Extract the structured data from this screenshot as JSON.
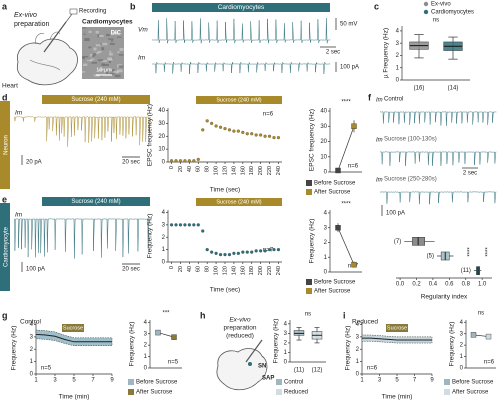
{
  "panel_labels": [
    "a",
    "b",
    "c",
    "d",
    "e",
    "f",
    "g",
    "h",
    "i"
  ],
  "a": {
    "title_lines": [
      "Ex-vivo",
      "preparation"
    ],
    "recording": "Recording",
    "heart": "Heart",
    "image_title": "Cardiomyocytes",
    "dic": "DIC",
    "scale": "10 µm"
  },
  "b": {
    "header": "Cardiomyocytes",
    "vm": "Vm",
    "im": "Im",
    "scale_v": "50 mV",
    "scale_t": "2 sec",
    "scale_i": "100 pA"
  },
  "d": {
    "side_label": "Neuron",
    "header": "Sucrose (240 mM)",
    "im": "Im",
    "scale_i": "20 pA",
    "scale_t": "20 sec"
  },
  "e": {
    "side_label": "Cardiomyocyte",
    "header": "Sucrose (240 mM)",
    "im": "Im",
    "scale_i": "100 pA",
    "scale_t": "20 sec"
  },
  "f": {
    "im_labels": [
      "Im",
      "Im",
      "Im"
    ],
    "trace_titles": [
      "Control",
      "Sucrose (100-130s)",
      "Sucrose (250-280s)"
    ],
    "scale_t": "2 sec",
    "scale_i": "100 pA"
  },
  "h": {
    "title_lines": [
      "Ex-vivo",
      "preparation",
      "(reduced)"
    ],
    "sn": "SN",
    "sap": "SAP"
  },
  "chart_data": [
    {
      "type": "box",
      "ylabel": "µ Frequency (Hz)",
      "ylim": [
        0,
        4.4
      ],
      "yticks": [
        0,
        1,
        2,
        3,
        4
      ],
      "annotations": [
        "ns"
      ],
      "series": [
        {
          "name": "Ex-vivo",
          "color": "#8c8c8c",
          "min": 1.8,
          "q1": 2.5,
          "median": 2.8,
          "q3": 3.1,
          "max": 3.7,
          "n_label": "(16)"
        },
        {
          "name": "Cardiomyocytes",
          "color": "#2e6f7a",
          "min": 1.7,
          "q1": 2.4,
          "median": 2.75,
          "q3": 3.1,
          "max": 3.5,
          "n_label": "(14)"
        }
      ]
    },
    {
      "type": "scatter",
      "header": "Sucrose (240 mM)",
      "header_color": "#a88a2a",
      "ylabel": "EPSC frequency (Hz)",
      "xlabel": "Time (sec)",
      "annotations": [
        "n=6"
      ],
      "xlim": [
        -8,
        248
      ],
      "xticks": [
        0,
        20,
        40,
        60,
        80,
        100,
        120,
        140,
        160,
        180,
        200,
        220,
        240
      ],
      "ylim": [
        0,
        42
      ],
      "yticks": [
        0,
        10,
        20,
        30,
        40
      ],
      "color": "#a88a2a",
      "x": [
        0,
        10,
        20,
        30,
        40,
        50,
        60,
        70,
        80,
        90,
        100,
        110,
        120,
        130,
        140,
        150,
        160,
        170,
        180,
        190,
        200,
        210,
        220,
        230,
        240
      ],
      "values": [
        1,
        1,
        1,
        1,
        1,
        1,
        2,
        25,
        32,
        30,
        28,
        27,
        26,
        25,
        24,
        24,
        23,
        22,
        22,
        21,
        21,
        20,
        20,
        19,
        19
      ]
    },
    {
      "type": "paired",
      "ylabel": "EPSC frequency (Hz)",
      "ylim": [
        0,
        42
      ],
      "yticks": [
        0,
        10,
        20,
        30,
        40
      ],
      "annotations": [
        "****",
        "n=6"
      ],
      "series": [
        {
          "name": "Before Sucrose",
          "color": "#444444",
          "values": [
            1
          ],
          "errors": [
            0.5
          ]
        },
        {
          "name": "After Sucrose",
          "color": "#a88a2a",
          "values": [
            30
          ],
          "errors": [
            4
          ]
        }
      ]
    },
    {
      "type": "scatter",
      "header": "Sucrose (240 mM)",
      "header_color": "#a88a2a",
      "ylabel": "Frequency (Hz)",
      "xlabel": "Time (sec)",
      "annotations": [
        "n=7"
      ],
      "xlim": [
        -8,
        248
      ],
      "xticks": [
        0,
        20,
        40,
        60,
        80,
        100,
        120,
        140,
        160,
        180,
        200,
        220,
        240
      ],
      "ylim": [
        0,
        4.2
      ],
      "yticks": [
        0,
        1,
        2,
        3,
        4
      ],
      "color": "#2e6f7a",
      "x": [
        0,
        10,
        20,
        30,
        40,
        50,
        60,
        70,
        80,
        90,
        100,
        110,
        120,
        130,
        140,
        150,
        160,
        170,
        180,
        190,
        200,
        210,
        220,
        230,
        240
      ],
      "values": [
        3,
        3,
        3,
        3,
        3,
        3,
        3,
        2.5,
        1,
        0.8,
        0.7,
        0.6,
        0.6,
        0.6,
        0.7,
        0.7,
        0.8,
        0.8,
        0.8,
        0.9,
        0.9,
        0.9,
        1,
        1,
        1
      ]
    },
    {
      "type": "paired",
      "ylabel": "Frequency (Hz)",
      "ylim": [
        0,
        4.2
      ],
      "yticks": [
        0,
        1,
        2,
        3,
        4
      ],
      "annotations": [
        "****",
        "n=7"
      ],
      "series": [
        {
          "name": "Before Sucrose",
          "color": "#444444",
          "values": [
            3
          ],
          "errors": [
            0.3
          ]
        },
        {
          "name": "After Sucrose",
          "color": "#a88a2a",
          "values": [
            0.5
          ],
          "errors": [
            0.2
          ]
        }
      ]
    },
    {
      "type": "box",
      "orientation": "horizontal",
      "xlabel": "Regularity index",
      "xlim": [
        -0.05,
        1.12
      ],
      "xticks": [
        {
          "value": 0,
          "label": "0.0"
        },
        0.2,
        0.4,
        0.6,
        0.8,
        {
          "value": 1,
          "label": "1.0"
        }
      ],
      "annotations": [
        "****",
        "****"
      ],
      "series": [
        {
          "color": "#8c8c8c",
          "min": 0.05,
          "q1": 0.15,
          "median": 0.22,
          "q3": 0.3,
          "max": 0.42,
          "n_label": "(7)"
        },
        {
          "color": "#a9c3cc",
          "min": 0.45,
          "q1": 0.5,
          "median": 0.55,
          "q3": 0.6,
          "max": 0.65,
          "n_label": "(5)"
        },
        {
          "color": "#2e6f7a",
          "min": 0.9,
          "q1": 0.93,
          "median": 0.95,
          "q3": 0.97,
          "max": 0.99,
          "n_label": "(11)"
        }
      ]
    },
    {
      "type": "line",
      "title": "Control",
      "header": "Sucrose",
      "header_color": "#8a7a3a",
      "ylabel": "Frequency (Hz)",
      "xlabel": "Time (min)",
      "annotations": [
        "n=5"
      ],
      "xlim": [
        1,
        9
      ],
      "xticks": [
        1,
        3,
        5,
        7,
        9
      ],
      "ylim": [
        0,
        4.2
      ],
      "yticks": [
        0,
        1,
        2,
        3,
        4
      ],
      "color": "#222222",
      "band_color": "#9fbfca",
      "x": [
        1,
        2,
        3,
        4,
        5,
        6,
        7,
        8,
        9
      ],
      "values": [
        3.2,
        3.15,
        3.05,
        2.8,
        2.6,
        2.6,
        2.6,
        2.6,
        2.6
      ],
      "errors": [
        0.35,
        0.35,
        0.35,
        0.33,
        0.32,
        0.32,
        0.32,
        0.32,
        0.32
      ]
    },
    {
      "type": "paired",
      "ylabel": "Frequency (Hz)",
      "ylim": [
        0,
        4.2
      ],
      "yticks": [
        0,
        1,
        2,
        3,
        4
      ],
      "annotations": [
        "***",
        "n=5"
      ],
      "series": [
        {
          "name": "Before Sucrose",
          "color": "#9fb5c0",
          "values": [
            3.1
          ],
          "errors": [
            0.2
          ]
        },
        {
          "name": "After Sucrose",
          "color": "#8a7a3a",
          "values": [
            2.7
          ],
          "errors": [
            0.2
          ]
        }
      ]
    },
    {
      "type": "box",
      "ylabel": "Frequency (Hz)",
      "ylim": [
        0,
        4.4
      ],
      "yticks": [
        0,
        1,
        2,
        3,
        4
      ],
      "annotations": [
        "ns"
      ],
      "series": [
        {
          "name": "Control",
          "color": "#9fb5c0",
          "min": 2.3,
          "q1": 2.8,
          "median": 3.0,
          "q3": 3.3,
          "max": 3.6,
          "n_label": "(11)"
        },
        {
          "name": "Reduced",
          "color": "#d0dce1",
          "min": 2.0,
          "q1": 2.4,
          "median": 2.8,
          "q3": 3.2,
          "max": 3.6,
          "n_label": "(12)"
        }
      ]
    },
    {
      "type": "line",
      "title": "Reduced",
      "header": "Sucrose",
      "header_color": "#8a7a3a",
      "ylabel": "Frequency (Hz)",
      "xlabel": "Time (min)",
      "annotations": [
        "n=6"
      ],
      "xlim": [
        1,
        9
      ],
      "xticks": [
        1,
        3,
        5,
        7,
        9
      ],
      "ylim": [
        0,
        4.2
      ],
      "yticks": [
        0,
        1,
        2,
        3,
        4
      ],
      "color": "#222222",
      "band_color": "#c5d5dc",
      "x": [
        1,
        2,
        3,
        4,
        5,
        6,
        7,
        8,
        9
      ],
      "values": [
        2.9,
        2.9,
        2.85,
        2.8,
        2.75,
        2.75,
        2.75,
        2.75,
        2.75
      ],
      "errors": [
        0.25,
        0.25,
        0.25,
        0.25,
        0.25,
        0.25,
        0.25,
        0.25,
        0.25
      ]
    },
    {
      "type": "paired",
      "ylabel": "Frequency (Hz)",
      "ylim": [
        0,
        4.2
      ],
      "yticks": [
        0,
        1,
        2,
        3,
        4
      ],
      "annotations": [
        "ns",
        "n=6"
      ],
      "series": [
        {
          "name": "Before Sucrose",
          "color": "#9fb5c0",
          "values": [
            2.9
          ],
          "errors": [
            0.15
          ]
        },
        {
          "name": "After Sucrose",
          "color": "#d0dce1",
          "values": [
            2.75
          ],
          "errors": [
            0.15
          ]
        }
      ]
    }
  ]
}
